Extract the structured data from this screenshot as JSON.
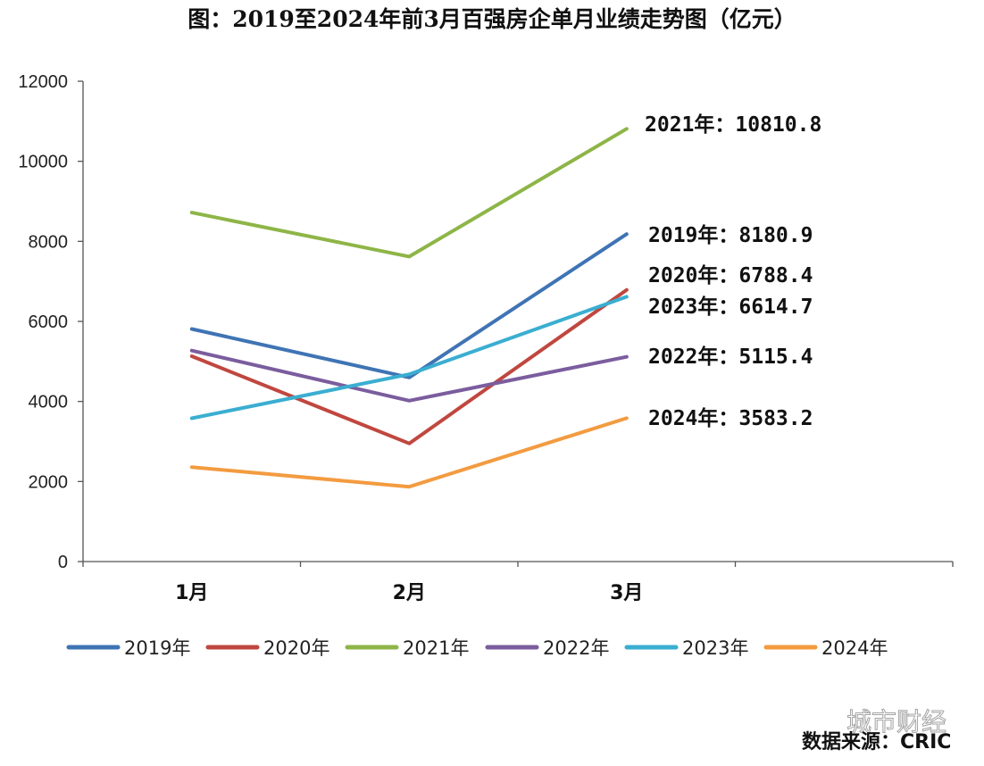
{
  "chart_data": {
    "type": "line",
    "title": "图：2019至2024年前3月百强房企单月业绩走势图（亿元）",
    "categories": [
      "1月",
      "2月",
      "3月"
    ],
    "ylim": [
      0,
      12000
    ],
    "yticks": [
      "0",
      "2000",
      "4000",
      "6000",
      "8000",
      "10000",
      "12000"
    ],
    "grid": false,
    "legend_position": "bottom",
    "series": [
      {
        "name": "2019年",
        "color": "#3f74b4",
        "values": [
          5810,
          4600,
          8180.9
        ],
        "annotation": "2019年：8180.9"
      },
      {
        "name": "2020年",
        "color": "#c0473f",
        "values": [
          5130,
          2950,
          6788.4
        ],
        "annotation": "2020年：6788.4"
      },
      {
        "name": "2021年",
        "color": "#8eb547",
        "values": [
          8720,
          7620,
          10810.8
        ],
        "annotation": "2021年：10810.8"
      },
      {
        "name": "2022年",
        "color": "#7b5d9e",
        "values": [
          5270,
          4020,
          5115.4
        ],
        "annotation": "2022年：5115.4"
      },
      {
        "name": "2023年",
        "color": "#3aaed1",
        "values": [
          3580,
          4680,
          6614.7
        ],
        "annotation": "2023年：6614.7"
      },
      {
        "name": "2024年",
        "color": "#f39b40",
        "values": [
          2360,
          1870,
          3583.2
        ],
        "annotation": "2024年：3583.2"
      }
    ]
  },
  "source": "数据来源：CRIC",
  "watermark": "城市财经",
  "colors": {
    "axis": "#555555"
  }
}
